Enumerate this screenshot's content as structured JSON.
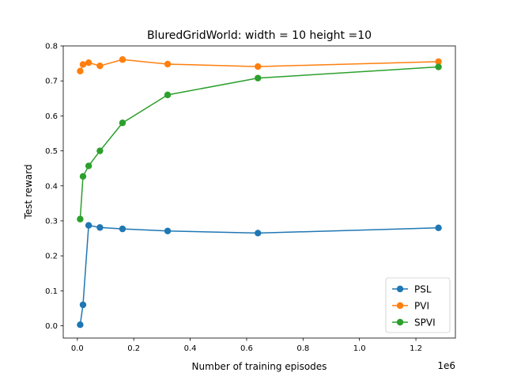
{
  "chart_data": {
    "type": "line",
    "title": "BluredGridWorld: width = 10 height =10",
    "xlabel": "Number of training episodes",
    "ylabel": "Test reward",
    "x_offset_label": "1e6",
    "xlim": [
      -50000,
      1340000
    ],
    "ylim": [
      -0.035,
      0.8
    ],
    "xticks": [
      0,
      200000,
      400000,
      600000,
      800000,
      1000000,
      1200000
    ],
    "xtick_labels": [
      "0.0",
      "0.2",
      "0.4",
      "0.6",
      "0.8",
      "1.0",
      "1.2"
    ],
    "yticks": [
      0.0,
      0.1,
      0.2,
      0.3,
      0.4,
      0.5,
      0.6,
      0.7,
      0.8
    ],
    "ytick_labels": [
      "0.0",
      "0.1",
      "0.2",
      "0.3",
      "0.4",
      "0.5",
      "0.6",
      "0.7",
      "0.8"
    ],
    "x": [
      10000,
      20000,
      40000,
      80000,
      160000,
      320000,
      640000,
      1280000
    ],
    "series": [
      {
        "name": "PSL",
        "color": "#1f77b4",
        "values": [
          0.003,
          0.06,
          0.287,
          0.281,
          0.277,
          0.271,
          0.265,
          0.28
        ]
      },
      {
        "name": "PVI",
        "color": "#ff7f0e",
        "values": [
          0.728,
          0.747,
          0.752,
          0.743,
          0.761,
          0.748,
          0.741,
          0.755
        ]
      },
      {
        "name": "SPVI",
        "color": "#2ca02c",
        "values": [
          0.305,
          0.427,
          0.457,
          0.5,
          0.58,
          0.66,
          0.708,
          0.74
        ]
      }
    ],
    "legend_position": "bottom-right",
    "grid": false
  }
}
